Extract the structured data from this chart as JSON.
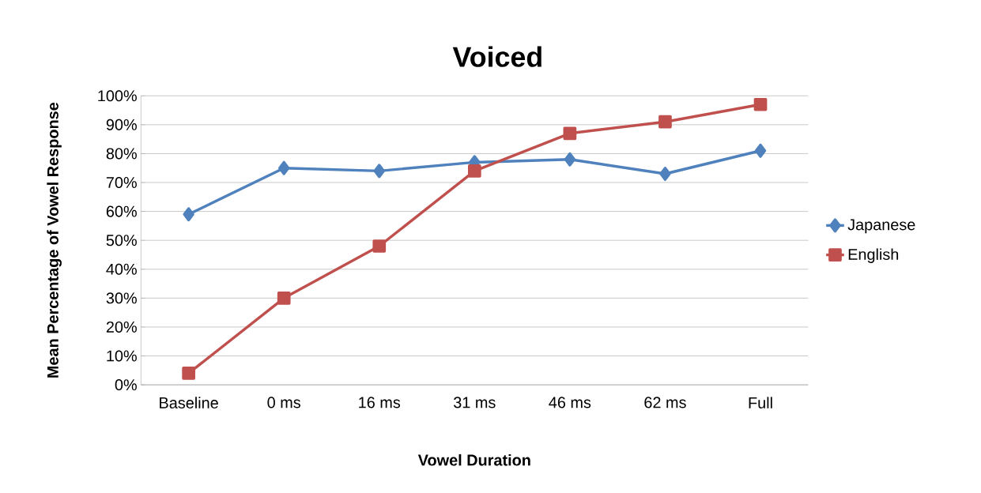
{
  "chart_data": {
    "type": "line",
    "title": "Voiced",
    "xlabel": "Vowel Duration",
    "ylabel": "Mean Percentage of Vowel Response",
    "categories": [
      "Baseline",
      "0 ms",
      "16 ms",
      "31 ms",
      "46 ms",
      "62 ms",
      "Full"
    ],
    "series": [
      {
        "name": "Japanese",
        "color": "#4f81bd",
        "marker": "diamond",
        "values": [
          59,
          75,
          74,
          77,
          78,
          73,
          81
        ]
      },
      {
        "name": "English",
        "color": "#c0504d",
        "marker": "square",
        "values": [
          4,
          30,
          48,
          74,
          87,
          91,
          97
        ]
      }
    ],
    "ylim": [
      0,
      100
    ],
    "yticks": [
      {
        "value": 0,
        "label": "0%"
      },
      {
        "value": 10,
        "label": "10%"
      },
      {
        "value": 20,
        "label": "20%"
      },
      {
        "value": 30,
        "label": "30%"
      },
      {
        "value": 40,
        "label": "40%"
      },
      {
        "value": 50,
        "label": "50%"
      },
      {
        "value": 60,
        "label": "60%"
      },
      {
        "value": 70,
        "label": "70%"
      },
      {
        "value": 80,
        "label": "80%"
      },
      {
        "value": 90,
        "label": "90%"
      },
      {
        "value": 100,
        "label": "100%"
      }
    ],
    "grid": "y",
    "legend": "right",
    "line_style": "solid"
  }
}
